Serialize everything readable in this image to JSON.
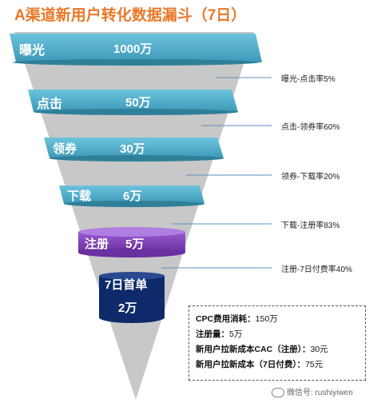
{
  "title": "A渠道新用户转化数据漏斗（7日）",
  "stages": [
    {
      "name": "曝光",
      "value": "1000万"
    },
    {
      "name": "点击",
      "value": "50万"
    },
    {
      "name": "领券",
      "value": "30万"
    },
    {
      "name": "下载",
      "value": "6万"
    },
    {
      "name": "注册",
      "value": "5万"
    },
    {
      "name": "7日首单",
      "value": "2万"
    }
  ],
  "rates": [
    "曝光-点击率5%",
    "点击-领券率60%",
    "领券-下载率20%",
    "下载-注册率83%",
    "注册-7日付费率40%"
  ],
  "summary": [
    {
      "label": "CPC费用消耗：",
      "value": "150万"
    },
    {
      "label": "注册量：",
      "value": "5万"
    },
    {
      "label": "新用户拉新成本CAC（注册）：",
      "value": "30元"
    },
    {
      "label": "新用户拉新成本（7日付费）：",
      "value": "75元"
    }
  ],
  "watermark": "微信号: rushiyiwen",
  "colors": {
    "title": "#e8782a",
    "band": "#4aaac8",
    "register": "#7b3fb0",
    "firstOrder": "#0e2a6a",
    "cone": "#c8c8c8"
  }
}
